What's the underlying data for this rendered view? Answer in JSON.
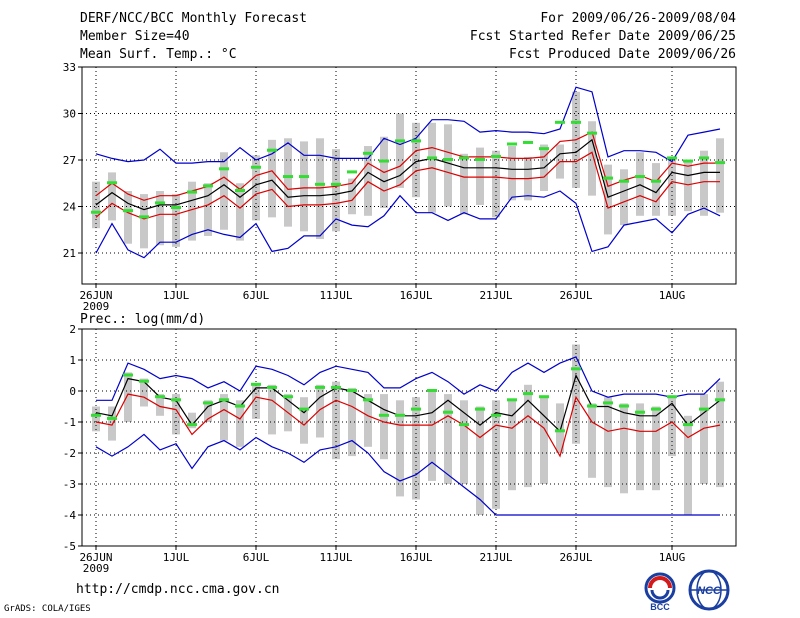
{
  "header": {
    "title": "DERF/NCC/BCC Monthly Forecast",
    "member_size": "Member Size=40",
    "variable": "Mean Surf. Temp.: °C",
    "period": "For 2009/06/26-2009/08/04",
    "refer_date": "Fcst Started Refer Date 2009/06/25",
    "produced_date": "Fcst Produced Date 2009/06/26"
  },
  "footer": {
    "url": "http://cmdp.ncc.cma.gov.cn",
    "software": "GrADS: COLA/IGES",
    "logo_bcc": "BCC",
    "logo_ncc": "NCC"
  },
  "colors": {
    "ensemble_mean": "#000000",
    "spread_band": "#dd0000",
    "min_max": "#0000cc",
    "members_box": "#c8c8c8",
    "observation_mark": "#33dd33",
    "grid": "#000000"
  },
  "chart_data": [
    {
      "type": "line",
      "id": "temperature",
      "title": "Mean Surf. Temp.: °C",
      "ylim": [
        19,
        33
      ],
      "yticks": [
        21,
        24,
        27,
        30,
        33
      ],
      "x_tick_labels": [
        "26JUN",
        "1JUL",
        "6JUL",
        "11JUL",
        "16JUL",
        "21JUL",
        "26JUL",
        "1AUG"
      ],
      "x_tick_days": [
        0,
        5,
        10,
        15,
        20,
        25,
        30,
        36
      ],
      "x_year_label": "2009",
      "days": 40,
      "series": [
        {
          "name": "max",
          "values": [
            27.4,
            27.1,
            26.9,
            27.0,
            27.7,
            26.8,
            26.8,
            26.9,
            26.9,
            27.8,
            27.0,
            27.4,
            28.1,
            27.3,
            27.3,
            27.1,
            27.1,
            27.1,
            28.4,
            28.0,
            28.4,
            29.6,
            29.6,
            29.5,
            28.8,
            28.9,
            28.8,
            28.8,
            28.7,
            29.0,
            31.7,
            31.4,
            27.2,
            27.6,
            27.6,
            27.5,
            26.9,
            28.6,
            28.8,
            29.0
          ]
        },
        {
          "name": "upper",
          "values": [
            24.7,
            25.5,
            24.8,
            24.4,
            24.7,
            24.7,
            25.0,
            25.3,
            25.9,
            25.1,
            26.0,
            26.3,
            25.1,
            25.2,
            25.2,
            25.3,
            25.5,
            26.8,
            26.2,
            26.6,
            27.6,
            27.8,
            27.5,
            27.2,
            27.2,
            27.2,
            27.1,
            27.1,
            27.2,
            28.2,
            28.3,
            28.8,
            25.3,
            25.7,
            26.0,
            25.6,
            26.8,
            26.6,
            26.8,
            26.8
          ]
        },
        {
          "name": "mean",
          "values": [
            24.1,
            24.9,
            24.2,
            23.8,
            24.1,
            24.1,
            24.4,
            24.7,
            25.4,
            24.6,
            25.4,
            25.7,
            24.6,
            24.7,
            24.7,
            24.8,
            25.0,
            26.2,
            25.6,
            26.0,
            26.9,
            27.1,
            26.8,
            26.5,
            26.5,
            26.5,
            26.4,
            26.4,
            26.5,
            27.4,
            27.5,
            28.3,
            24.6,
            25.0,
            25.4,
            24.9,
            26.2,
            26.0,
            26.2,
            26.2
          ]
        },
        {
          "name": "lower",
          "values": [
            23.3,
            24.2,
            23.6,
            23.2,
            23.5,
            23.5,
            23.8,
            24.1,
            24.7,
            23.9,
            24.8,
            25.1,
            24.0,
            24.1,
            24.1,
            24.2,
            24.4,
            25.6,
            25.0,
            25.4,
            26.3,
            26.5,
            26.2,
            25.9,
            25.9,
            25.9,
            25.8,
            25.8,
            25.9,
            26.9,
            26.9,
            27.5,
            23.9,
            24.3,
            24.7,
            24.3,
            25.6,
            25.4,
            25.6,
            25.6
          ]
        },
        {
          "name": "min",
          "values": [
            21.0,
            22.9,
            21.2,
            20.7,
            21.7,
            21.7,
            22.2,
            22.5,
            22.2,
            22.0,
            22.9,
            21.1,
            21.3,
            22.1,
            22.1,
            23.2,
            22.8,
            22.7,
            23.4,
            24.7,
            23.6,
            23.6,
            23.1,
            23.6,
            23.2,
            23.2,
            24.6,
            24.7,
            24.6,
            25.0,
            24.2,
            21.1,
            21.4,
            22.8,
            23.0,
            23.2,
            22.3,
            23.5,
            23.9,
            23.4
          ]
        }
      ],
      "members_box": {
        "high": [
          25.6,
          26.2,
          25.0,
          24.8,
          25.0,
          24.8,
          25.6,
          25.5,
          27.5,
          25.5,
          27.3,
          28.3,
          28.4,
          28.2,
          28.4,
          27.7,
          25.8,
          27.9,
          28.5,
          30.0,
          29.4,
          29.4,
          29.3,
          27.4,
          27.8,
          27.6,
          27.9,
          27.2,
          28.0,
          28.0,
          31.4,
          29.5,
          26.7,
          26.4,
          27.5,
          26.8,
          27.1,
          26.9,
          27.6,
          28.4
        ],
        "low": [
          22.6,
          23.1,
          21.6,
          21.3,
          21.5,
          21.4,
          21.8,
          22.1,
          22.5,
          21.8,
          23.1,
          23.3,
          22.7,
          22.4,
          21.9,
          22.4,
          23.5,
          23.4,
          23.9,
          25.2,
          24.6,
          23.6,
          24.0,
          23.5,
          24.1,
          23.3,
          24.4,
          24.4,
          25.0,
          25.8,
          25.2,
          24.7,
          22.2,
          22.8,
          23.4,
          23.4,
          23.4,
          23.7,
          23.4,
          23.6
        ]
      },
      "observations": [
        23.6,
        25.5,
        23.7,
        23.3,
        24.2,
        23.9,
        24.9,
        25.3,
        26.4,
        25.0,
        26.5,
        27.6,
        25.9,
        25.9,
        25.4,
        25.4,
        26.2,
        27.4,
        26.9,
        28.2,
        28.2,
        27.1,
        27.0,
        27.1,
        27.0,
        27.2,
        28.0,
        28.1,
        27.7,
        29.4,
        29.4,
        28.7,
        25.8,
        25.6,
        25.9,
        25.6,
        27.1,
        26.9,
        27.1,
        26.8
      ]
    },
    {
      "type": "line",
      "id": "precipitation",
      "title": "Prec.: log(mm/d)",
      "ylim": [
        -5,
        2
      ],
      "yticks": [
        -5,
        -4,
        -3,
        -2,
        -1,
        0,
        1,
        2
      ],
      "x_tick_labels": [
        "26JUN",
        "1JUL",
        "6JUL",
        "11JUL",
        "16JUL",
        "21JUL",
        "26JUL",
        "1AUG"
      ],
      "x_tick_days": [
        0,
        5,
        10,
        15,
        20,
        25,
        30,
        36
      ],
      "x_year_label": "2009",
      "days": 40,
      "series": [
        {
          "name": "max",
          "values": [
            -0.3,
            -0.3,
            0.9,
            0.7,
            0.4,
            0.5,
            0.4,
            0.1,
            0.3,
            0.0,
            0.8,
            0.7,
            0.5,
            0.2,
            0.6,
            0.8,
            0.7,
            0.6,
            0.1,
            0.1,
            0.4,
            0.6,
            0.3,
            -0.1,
            0.2,
            0.0,
            0.6,
            0.9,
            0.6,
            0.9,
            1.1,
            0.0,
            -0.2,
            -0.1,
            -0.1,
            -0.1,
            -0.2,
            -0.1,
            -0.1,
            0.4
          ]
        },
        {
          "name": "mean",
          "values": [
            -0.7,
            -0.8,
            0.4,
            0.3,
            -0.2,
            -0.3,
            -1.1,
            -0.5,
            -0.3,
            -0.5,
            0.1,
            0.1,
            -0.3,
            -0.7,
            -0.2,
            0.1,
            0.0,
            -0.3,
            -0.6,
            -0.8,
            -0.8,
            -0.7,
            -0.3,
            -0.7,
            -1.1,
            -0.7,
            -0.8,
            -0.3,
            -0.8,
            -1.3,
            0.5,
            -0.5,
            -0.5,
            -0.7,
            -0.8,
            -0.8,
            -0.4,
            -1.1,
            -0.7,
            -0.3
          ]
        },
        {
          "name": "lower",
          "values": [
            -1.0,
            -1.1,
            -0.1,
            -0.2,
            -0.5,
            -0.6,
            -1.4,
            -0.9,
            -0.6,
            -0.9,
            -0.2,
            -0.3,
            -0.7,
            -1.1,
            -0.6,
            -0.3,
            -0.5,
            -0.8,
            -1.0,
            -1.1,
            -1.1,
            -1.1,
            -0.8,
            -1.1,
            -1.5,
            -1.1,
            -1.2,
            -0.8,
            -1.2,
            -2.1,
            -0.2,
            -1.0,
            -1.3,
            -1.2,
            -1.3,
            -1.3,
            -1.0,
            -1.5,
            -1.2,
            -1.1
          ]
        },
        {
          "name": "min",
          "values": [
            -1.8,
            -2.1,
            -1.8,
            -1.4,
            -1.9,
            -1.7,
            -2.5,
            -1.8,
            -1.6,
            -1.9,
            -1.5,
            -1.8,
            -2.0,
            -2.3,
            -1.9,
            -1.8,
            -1.6,
            -2.0,
            -2.6,
            -2.9,
            -2.7,
            -2.3,
            -2.7,
            -3.1,
            -3.5,
            -4.0,
            -4.0,
            -4.0,
            -4.0,
            -4.0,
            -4.0,
            -4.0,
            -4.0,
            -4.0,
            -4.0,
            -4.0,
            -4.0,
            -4.0,
            -4.0,
            -4.0
          ]
        }
      ],
      "members_box": {
        "high": [
          -0.5,
          -0.5,
          0.6,
          0.4,
          -0.1,
          -0.1,
          -0.7,
          -0.3,
          -0.1,
          -0.3,
          0.2,
          0.2,
          -0.1,
          -0.2,
          0.2,
          0.3,
          0.1,
          -0.1,
          -0.1,
          -0.3,
          -0.2,
          0.0,
          -0.1,
          -0.3,
          -0.5,
          -0.3,
          -0.3,
          0.2,
          -0.2,
          -0.4,
          1.5,
          -0.4,
          -0.2,
          -0.4,
          -0.4,
          -0.5,
          -0.2,
          -0.8,
          -0.1,
          0.3
        ],
        "low": [
          -1.3,
          -1.6,
          -1.0,
          -0.5,
          -0.8,
          -1.4,
          -1.2,
          -1.0,
          -1.6,
          -1.8,
          -0.9,
          -1.4,
          -1.3,
          -1.7,
          -1.5,
          -2.2,
          -2.1,
          -1.8,
          -2.2,
          -3.4,
          -3.5,
          -2.9,
          -3.0,
          -3.0,
          -4.0,
          -3.8,
          -3.2,
          -3.1,
          -3.0,
          -2.0,
          -1.7,
          -2.8,
          -3.1,
          -3.3,
          -3.2,
          -3.2,
          -2.1,
          -4.0,
          -3.0,
          -3.1
        ]
      },
      "observations": [
        -0.8,
        -0.9,
        0.5,
        0.3,
        -0.2,
        -0.3,
        -1.1,
        -0.4,
        -0.3,
        -0.5,
        0.2,
        0.1,
        -0.2,
        -0.6,
        0.1,
        0.1,
        0.0,
        -0.3,
        -0.8,
        -0.8,
        -0.6,
        0.0,
        -0.7,
        -1.1,
        -0.6,
        -0.8,
        -0.3,
        -0.1,
        -0.2,
        -1.3,
        0.7,
        -0.5,
        -0.4,
        -0.5,
        -0.7,
        -0.6,
        -0.2,
        -1.1,
        -0.6,
        -0.3
      ]
    }
  ]
}
